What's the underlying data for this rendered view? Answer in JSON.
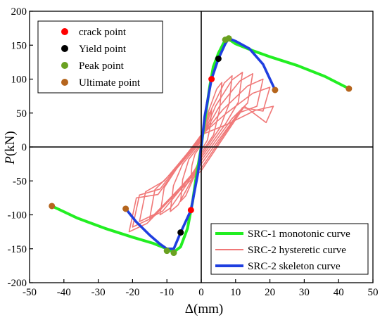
{
  "chart_data": {
    "type": "line",
    "title": "",
    "xlabel": "Δ(mm)",
    "ylabel_italic": "P",
    "ylabel_rest": "(kN)",
    "xlim": [
      -50,
      50
    ],
    "ylim": [
      -200,
      200
    ],
    "xticks": [
      -50,
      -40,
      -30,
      -20,
      -10,
      0,
      10,
      20,
      30,
      40,
      50
    ],
    "yticks": [
      -200,
      -150,
      -100,
      -50,
      0,
      50,
      100,
      150,
      200
    ],
    "grid": false,
    "zero_lines": true,
    "point_legend_position": "top-left",
    "line_legend_position": "bottom-right",
    "point_markers": [
      {
        "name": "crack point",
        "color": "#ff0000",
        "points": [
          [
            3,
            100
          ],
          [
            -3,
            -93
          ]
        ]
      },
      {
        "name": "Yield point",
        "color": "#000000",
        "points": [
          [
            5,
            130
          ],
          [
            -6,
            -126
          ]
        ]
      },
      {
        "name": "Peak point",
        "color": "#6aa121",
        "points": [
          [
            7,
            158
          ],
          [
            8,
            160
          ],
          [
            -10,
            -153
          ],
          [
            -8,
            -156
          ]
        ]
      },
      {
        "name": "Ultimate point",
        "color": "#b5651d",
        "points": [
          [
            21.5,
            84
          ],
          [
            43,
            86
          ],
          [
            -22,
            -91
          ],
          [
            -43.5,
            -87
          ]
        ]
      }
    ],
    "series": [
      {
        "name": "SRC-1 monotonic curve",
        "color": "#22ee22",
        "points": [
          [
            -43.5,
            -87
          ],
          [
            -36,
            -105
          ],
          [
            -28,
            -120
          ],
          [
            -20,
            -133
          ],
          [
            -14,
            -142
          ],
          [
            -10,
            -150
          ],
          [
            -8,
            -155
          ],
          [
            -6,
            -147
          ],
          [
            -4,
            -120
          ],
          [
            -2.5,
            -80
          ],
          [
            -1.5,
            -45
          ],
          [
            -0.5,
            -15
          ],
          [
            0,
            0
          ],
          [
            0.5,
            20
          ],
          [
            1.5,
            55
          ],
          [
            2.5,
            90
          ],
          [
            3.5,
            118
          ],
          [
            5,
            138
          ],
          [
            6.5,
            153
          ],
          [
            8,
            159
          ],
          [
            10,
            152
          ],
          [
            15,
            142
          ],
          [
            20,
            133
          ],
          [
            28,
            120
          ],
          [
            36,
            104
          ],
          [
            43,
            86
          ]
        ]
      },
      {
        "name": "SRC-2 hysteretic curve",
        "color": "#f07878",
        "loops": [
          {
            "amp": 3,
            "peak_pos": 55,
            "peak_neg": -45,
            "res_pos": 10,
            "res_neg": -10
          },
          {
            "amp": 6,
            "peak_pos": 95,
            "peak_neg": -80,
            "res_pos": 18,
            "res_neg": -18
          },
          {
            "amp": 9,
            "peak_pos": 105,
            "peak_neg": -95,
            "res_pos": 28,
            "res_neg": -25
          },
          {
            "amp": 12,
            "peak_pos": 110,
            "peak_neg": -100,
            "res_pos": 35,
            "res_neg": -32
          },
          {
            "amp": 15,
            "peak_pos": 108,
            "peak_neg": -105,
            "res_pos": 42,
            "res_neg": -40
          },
          {
            "amp": 18,
            "peak_pos": 100,
            "peak_neg": -110,
            "res_pos": 50,
            "res_neg": -50
          },
          {
            "amp": 20,
            "peak_pos": 88,
            "peak_neg": -118,
            "res_pos": 58,
            "res_neg": -62
          },
          {
            "amp": 21,
            "peak_pos": 60,
            "peak_neg": -125,
            "res_pos": 60,
            "res_neg": -70
          }
        ]
      },
      {
        "name": "SRC-2 skeleton curve",
        "color": "#1f3fe0",
        "points": [
          [
            -22,
            -91
          ],
          [
            -19,
            -110
          ],
          [
            -15,
            -130
          ],
          [
            -12,
            -143
          ],
          [
            -10,
            -150
          ],
          [
            -8,
            -150
          ],
          [
            -6,
            -126
          ],
          [
            -3,
            -93
          ],
          [
            -1,
            -40
          ],
          [
            0,
            0
          ],
          [
            1,
            45
          ],
          [
            3,
            100
          ],
          [
            5,
            130
          ],
          [
            7,
            152
          ],
          [
            8,
            160
          ],
          [
            10,
            156
          ],
          [
            14,
            145
          ],
          [
            18,
            122
          ],
          [
            21.5,
            84
          ]
        ]
      }
    ]
  }
}
